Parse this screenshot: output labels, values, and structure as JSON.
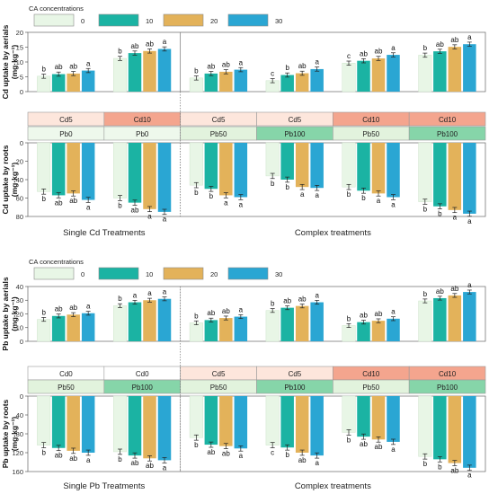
{
  "colors": {
    "0": "#e8f6e6",
    "10": "#1bb3a3",
    "20": "#e3b25a",
    "30": "#2aa6d3",
    "outline": "#8a8a8a",
    "cd5": "#fde6dc",
    "cd10": "#f4a58e",
    "pb0": "#eef8ec",
    "pb50": "#e2f3dd",
    "pb100": "#86d5a9"
  },
  "chart_data": [
    {
      "type": "bar",
      "legend_title": "CA concentrations",
      "legend": [
        "0",
        "10",
        "20",
        "30"
      ],
      "groups": [
        {
          "cd": "Cd5",
          "pb": "Pb0"
        },
        {
          "cd": "Cd10",
          "pb": "Pb0"
        },
        {
          "cd": "Cd5",
          "pb": "Pb50"
        },
        {
          "cd": "Cd5",
          "pb": "Pb100"
        },
        {
          "cd": "Cd10",
          "pb": "Pb50"
        },
        {
          "cd": "Cd10",
          "pb": "Pb100"
        }
      ],
      "section_labels": [
        "Single Cd Treatments",
        "Complex treatments"
      ],
      "top": {
        "ylabel1": "Cd uptake by aerials",
        "ylabel2": "(mg·kg⁻¹)",
        "ylim": [
          0,
          20
        ],
        "yticks": [
          "0",
          "5",
          "10",
          "15",
          "20"
        ],
        "values": [
          [
            5.2,
            5.9,
            6.1,
            7.1
          ],
          [
            11.2,
            13.0,
            13.7,
            14.4
          ],
          [
            4.6,
            6.1,
            6.7,
            7.4
          ],
          [
            3.7,
            5.6,
            6.2,
            7.6
          ],
          [
            9.6,
            10.4,
            11.2,
            12.4
          ],
          [
            12.3,
            13.6,
            15.1,
            16.0
          ]
        ],
        "letters": [
          [
            "b",
            "ab",
            "ab",
            "a"
          ],
          [
            "b",
            "ab",
            "ab",
            "a"
          ],
          [
            "b",
            "ab",
            "ab",
            "a"
          ],
          [
            "c",
            "b",
            "ab",
            "a"
          ],
          [
            "c",
            "ab",
            "ab",
            "a"
          ],
          [
            "b",
            "ab",
            "ab",
            "a"
          ]
        ]
      },
      "bottom": {
        "ylabel1": "Cd uptake by roots",
        "ylabel2": "(mg·kg⁻¹)",
        "ylim": [
          0,
          80
        ],
        "yticks": [
          "0",
          "20",
          "40",
          "60",
          "80"
        ],
        "values": [
          [
            53,
            57,
            55,
            62
          ],
          [
            60,
            65,
            72,
            75
          ],
          [
            46,
            50,
            57,
            59
          ],
          [
            36,
            40,
            48,
            49
          ],
          [
            48,
            52,
            55,
            59
          ],
          [
            64,
            69,
            73,
            77
          ]
        ],
        "letters": [
          [
            "b",
            "ab",
            "ab",
            "a"
          ],
          [
            "b",
            "ab",
            "a",
            "a"
          ],
          [
            "b",
            "b",
            "a",
            "a"
          ],
          [
            "b",
            "b",
            "a",
            "a"
          ],
          [
            "b",
            "b",
            "a",
            "a"
          ],
          [
            "b",
            "b",
            "a",
            "a"
          ]
        ]
      }
    },
    {
      "type": "bar",
      "legend_title": "CA concentrations",
      "legend": [
        "0",
        "10",
        "20",
        "30"
      ],
      "groups": [
        {
          "cd": "Cd0",
          "pb": "Pb50"
        },
        {
          "cd": "Cd0",
          "pb": "Pb100"
        },
        {
          "cd": "Cd5",
          "pb": "Pb50"
        },
        {
          "cd": "Cd5",
          "pb": "Pb100"
        },
        {
          "cd": "Cd10",
          "pb": "Pb50"
        },
        {
          "cd": "Cd10",
          "pb": "Pb100"
        }
      ],
      "section_labels": [
        "Single Pb Treatments",
        "Complex treatments"
      ],
      "top": {
        "ylabel1": "Pb uptake by aerials",
        "ylabel2": "(mg·kg⁻¹)",
        "ylim": [
          0,
          40
        ],
        "yticks": [
          "0",
          "10",
          "20",
          "30",
          "40"
        ],
        "values": [
          [
            16,
            18.5,
            19.5,
            20.5
          ],
          [
            26,
            28.5,
            30,
            31
          ],
          [
            13.5,
            15.5,
            17,
            18
          ],
          [
            22.5,
            24.5,
            25.8,
            28.5
          ],
          [
            11.5,
            14,
            15,
            16.5
          ],
          [
            29.5,
            31.5,
            33.5,
            36
          ]
        ],
        "letters": [
          [
            "b",
            "ab",
            "ab",
            "a"
          ],
          [
            "b",
            "a",
            "a",
            "a"
          ],
          [
            "b",
            "ab",
            "ab",
            "a"
          ],
          [
            "b",
            "ab",
            "ab",
            "a"
          ],
          [
            "b",
            "ab",
            "ab",
            "a"
          ],
          [
            "b",
            "ab",
            "ab",
            "a"
          ]
        ]
      },
      "bottom": {
        "ylabel1": "Pb uptake by roots",
        "ylabel2": "(mg·kg⁻¹)",
        "ylim": [
          0,
          160
        ],
        "yticks": [
          "0",
          "40",
          "80",
          "120",
          "160"
        ],
        "values": [
          [
            104,
            110,
            116,
            120
          ],
          [
            118,
            126,
            132,
            136
          ],
          [
            88,
            103,
            106,
            111
          ],
          [
            104,
            109,
            120,
            126
          ],
          [
            77,
            86,
            92,
            97
          ],
          [
            128,
            134,
            142,
            152
          ]
        ],
        "letters": [
          [
            "b",
            "ab",
            "ab",
            "a"
          ],
          [
            "b",
            "ab",
            "ab",
            "a"
          ],
          [
            "b",
            "ab",
            "ab",
            "a"
          ],
          [
            "c",
            "b",
            "ab",
            "a"
          ],
          [
            "b",
            "ab",
            "ab",
            "a"
          ],
          [
            "b",
            "b",
            "ab",
            "a"
          ]
        ]
      }
    }
  ]
}
